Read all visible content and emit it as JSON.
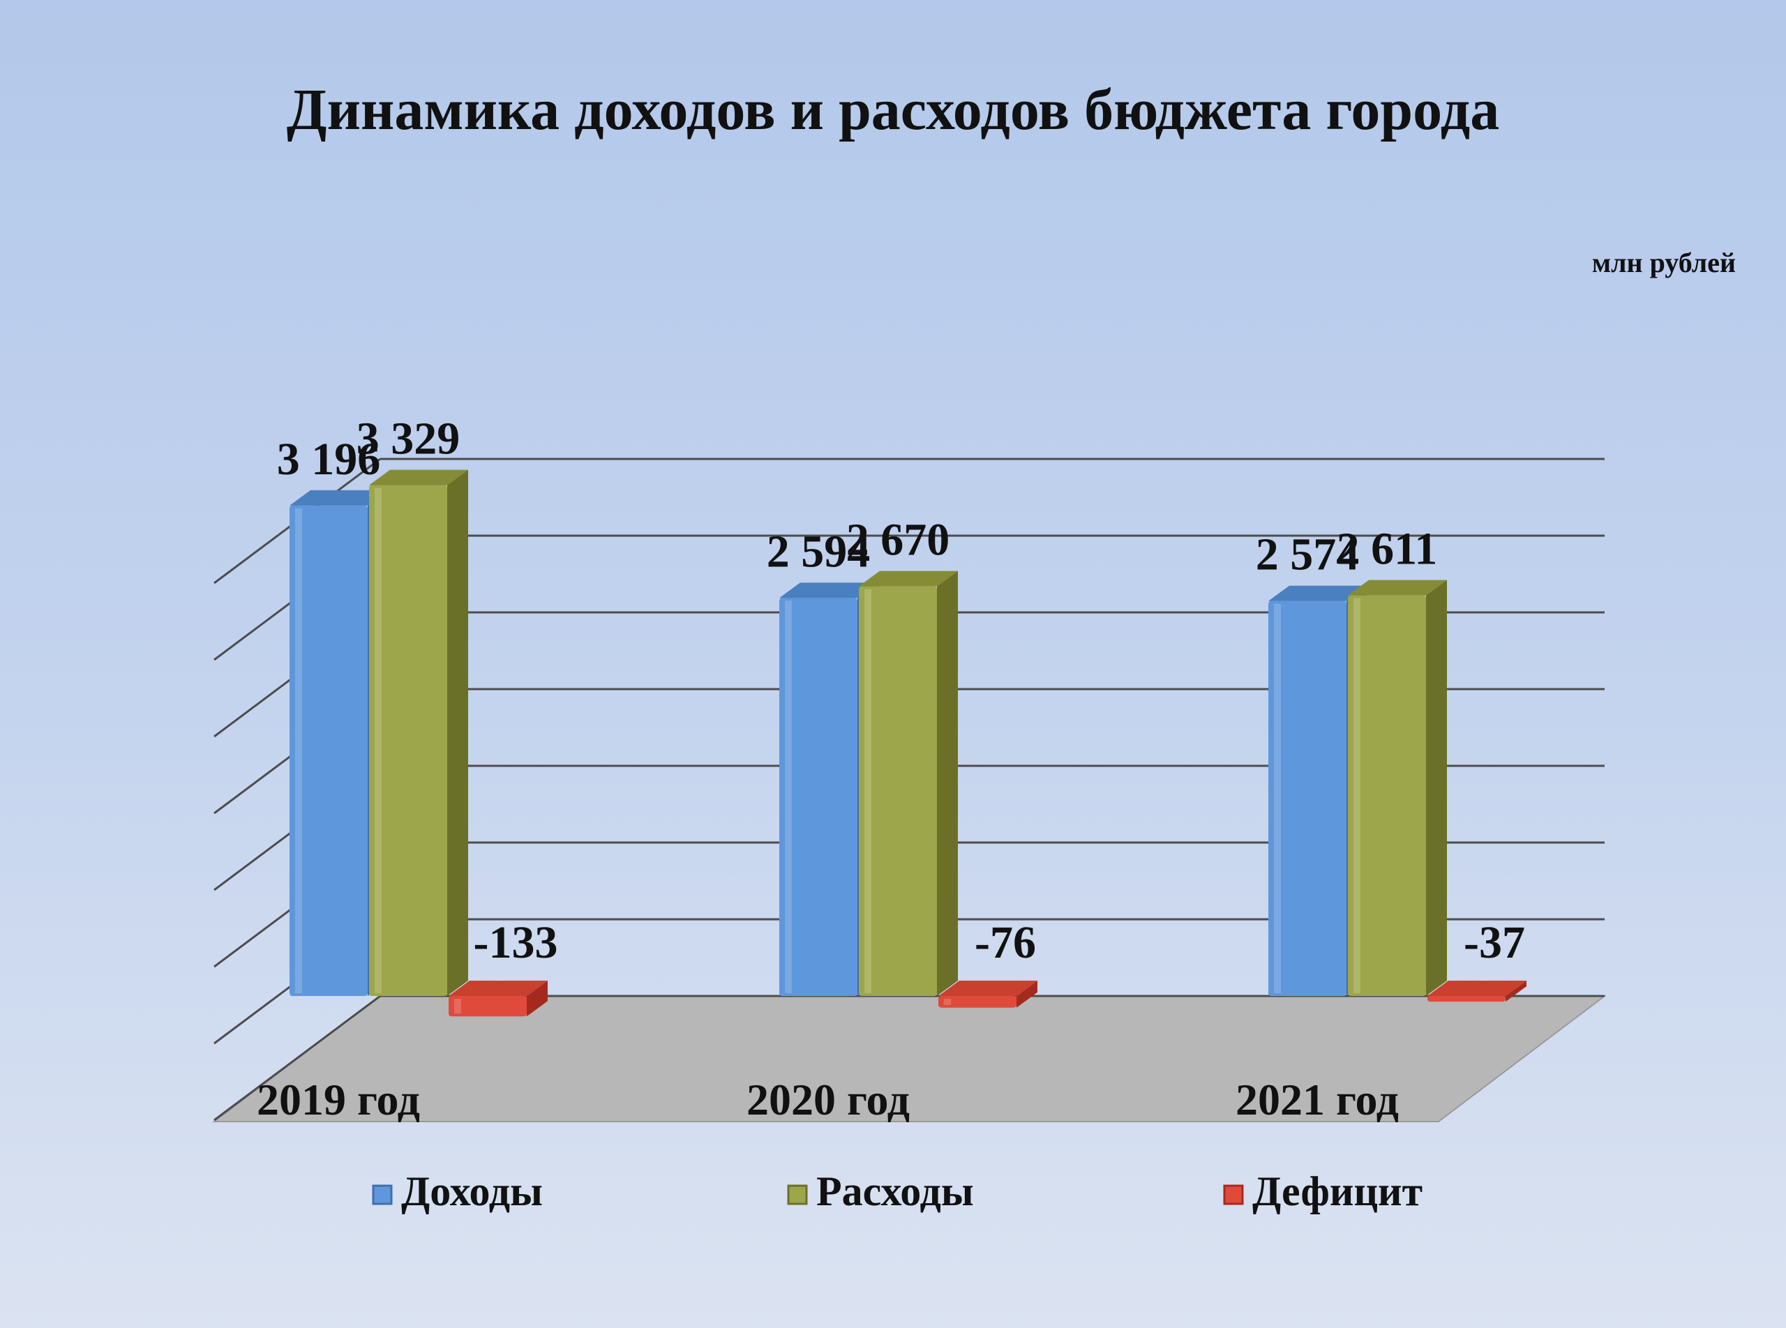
{
  "chart_data": {
    "type": "bar",
    "title": "Динамика  доходов  и расходов  бюджета  города",
    "unit_label": "млн рублей",
    "categories": [
      "2019 год",
      "2020 год",
      "2021 год"
    ],
    "series": [
      {
        "name": "Доходы",
        "values": [
          3196,
          2594,
          2574
        ],
        "labels": [
          "3 196",
          "2 594",
          "2 574"
        ]
      },
      {
        "name": "Расходы",
        "values": [
          3329,
          2670,
          2611
        ],
        "labels": [
          "3 329",
          "2 670",
          "2 611"
        ]
      },
      {
        "name": "Дефицит",
        "values": [
          -133,
          -76,
          -37
        ],
        "labels": [
          "-133",
          "-76",
          "-37"
        ]
      }
    ],
    "ylim": [
      0,
      3500
    ],
    "grid": true,
    "legend_position": "bottom",
    "three_d": true
  },
  "colors": {
    "Доходы": {
      "front": "#5f97dc",
      "side": "#3e6fad",
      "top": "#4a7fc0"
    },
    "Расходы": {
      "front": "#9da64a",
      "side": "#6b7028",
      "top": "#858c35"
    },
    "Дефицит": {
      "front": "#e04a3a",
      "side": "#a52a1e",
      "top": "#c9402f"
    },
    "floor": "#b7b7b7",
    "grid": "#4c4c4c"
  }
}
